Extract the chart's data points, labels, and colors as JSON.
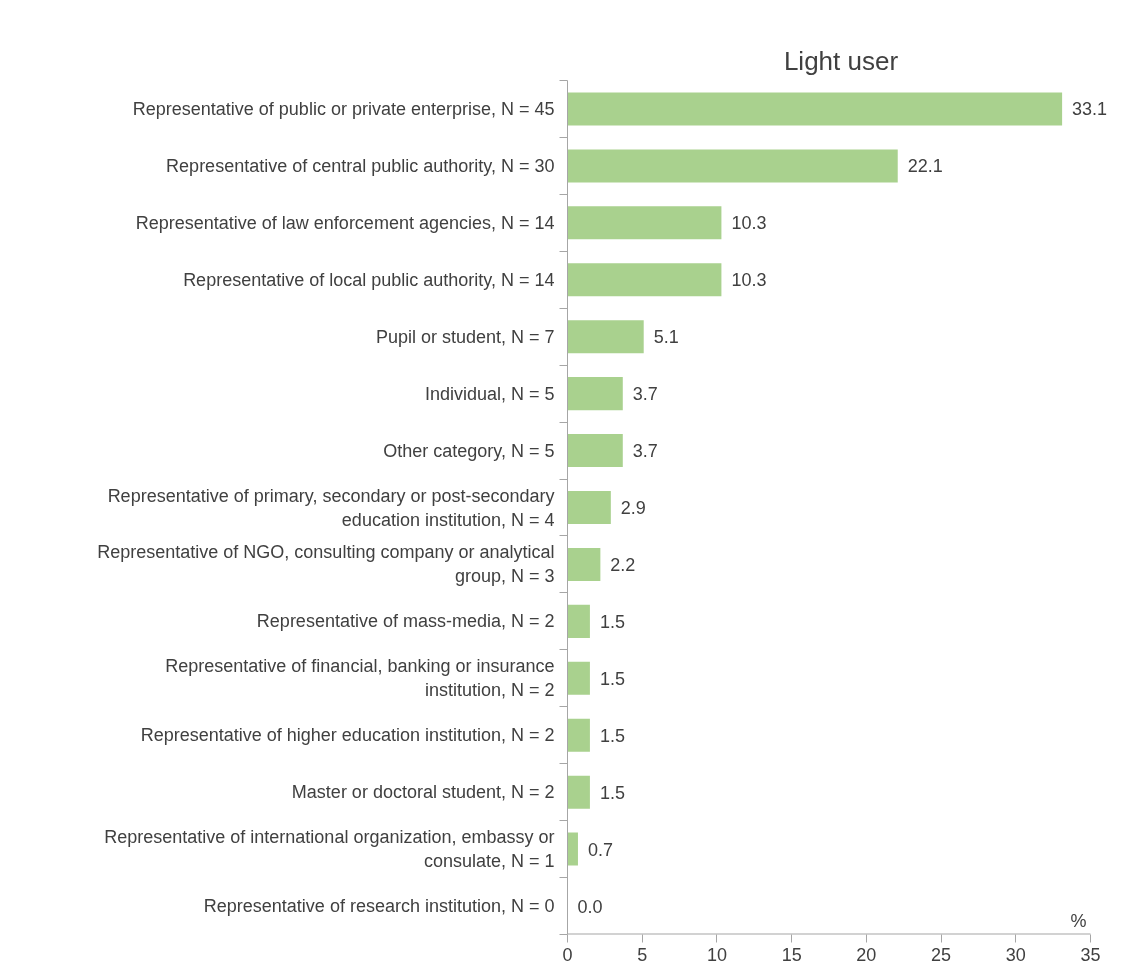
{
  "chart_data": {
    "type": "bar",
    "orientation": "horizontal",
    "title": "Light user",
    "xlabel": "%",
    "categories": [
      "Representative of public or private enterprise, N = 45",
      "Representative of central public authority, N = 30",
      "Representative of law enforcement agencies, N = 14",
      "Representative of local public authority, N = 14",
      "Pupil or student, N = 7",
      "Individual, N = 5",
      "Other category, N = 5",
      "Representative of primary, secondary or post-secondary education institution, N = 4",
      "Representative of NGO, consulting company or analytical group, N = 3",
      "Representative of mass-media, N = 2",
      "Representative of financial, banking or insurance institution, N = 2",
      "Representative of higher education institution, N = 2",
      "Master or doctoral student, N = 2",
      "Representative of international organization, embassy or consulate, N = 1",
      "Representative of research institution, N = 0"
    ],
    "values": [
      33.1,
      22.1,
      10.3,
      10.3,
      5.1,
      3.7,
      3.7,
      2.9,
      2.2,
      1.5,
      1.5,
      1.5,
      1.5,
      0.7,
      0.0
    ],
    "value_labels": [
      "33.1",
      "22.1",
      "10.3",
      "10.3",
      "5.1",
      "3.7",
      "3.7",
      "2.9",
      "2.2",
      "1.5",
      "1.5",
      "1.5",
      "1.5",
      "0.7",
      "0.0"
    ],
    "color": "#a9d18e",
    "xlim": [
      0,
      35
    ],
    "xticks": [
      0,
      5,
      10,
      15,
      20,
      25,
      30,
      35
    ],
    "grid": false
  }
}
